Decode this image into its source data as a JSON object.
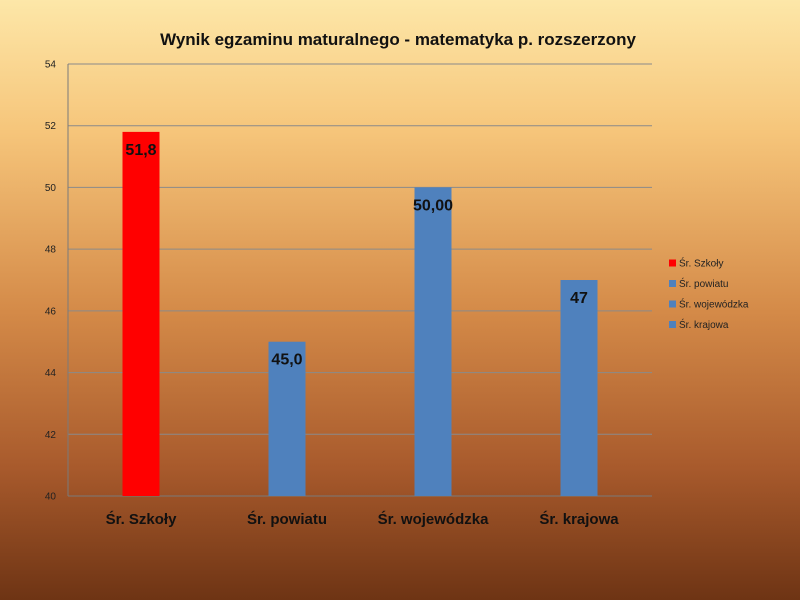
{
  "chart_data": {
    "type": "bar",
    "title": "Wynik egzaminu maturalnego - matematyka p. rozszerzony",
    "categories": [
      "Śr. Szkoły",
      "Śr. powiatu",
      "Śr. wojewódzka",
      "Śr. krajowa"
    ],
    "values": [
      51.8,
      45.0,
      50.0,
      47
    ],
    "data_labels": [
      "51,8",
      "45,0",
      "50,00",
      "47"
    ],
    "colors": [
      "#ff0000",
      "#4f81bd",
      "#4f81bd",
      "#4f81bd"
    ],
    "ylim": [
      40,
      54
    ],
    "yticks": [
      "40",
      "42",
      "44",
      "46",
      "48",
      "50",
      "52",
      "54"
    ],
    "legend": {
      "placement": "right",
      "entries": [
        {
          "label": "Śr. Szkoły",
          "color": "#ff0000"
        },
        {
          "label": "Śr. powiatu",
          "color": "#4f81bd"
        },
        {
          "label": "Śr. wojewódzka",
          "color": "#4f81bd"
        },
        {
          "label": "Śr. krajowa",
          "color": "#4f81bd"
        }
      ]
    },
    "grid": true
  }
}
